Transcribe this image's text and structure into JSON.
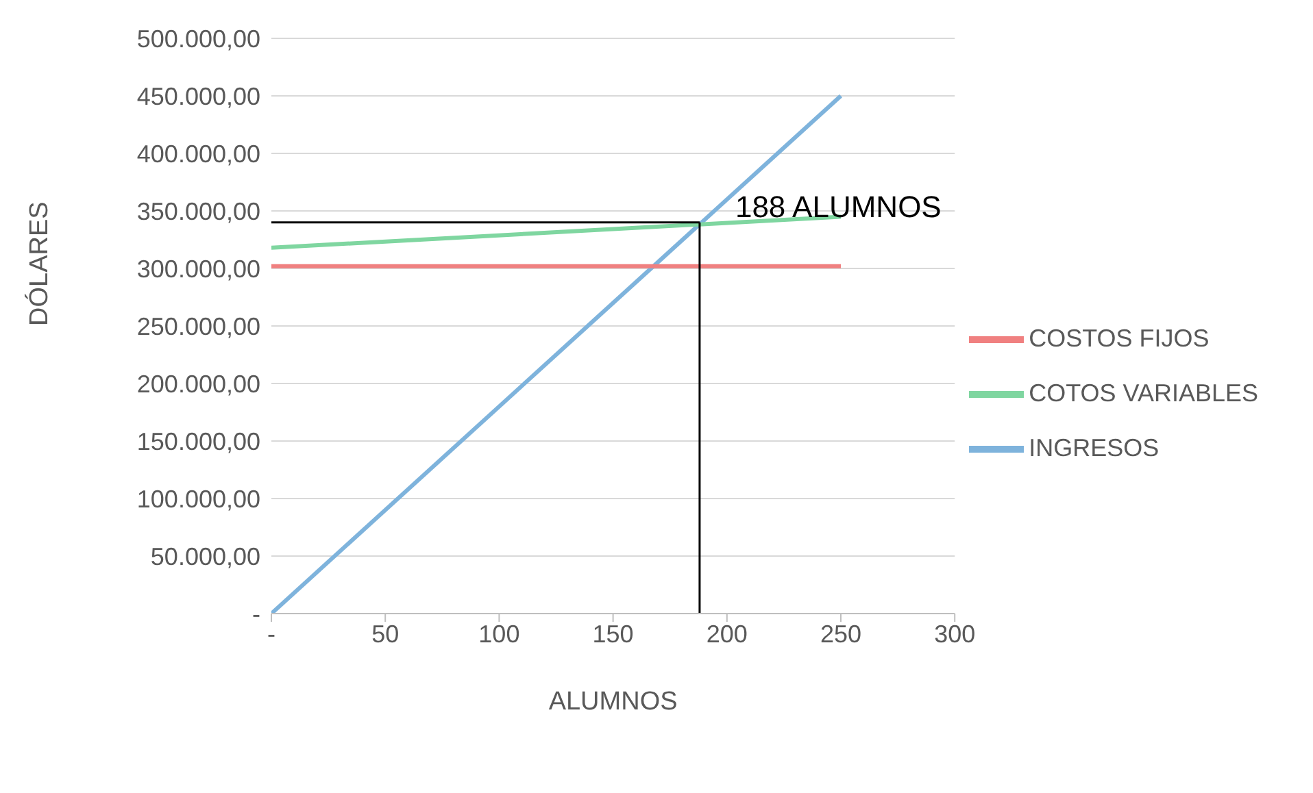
{
  "chart_data": {
    "type": "line",
    "xlabel": "ALUMNOS",
    "ylabel": "DÓLARES",
    "xlim": [
      0,
      300
    ],
    "xticks": [
      {
        "value": 0,
        "label": "-"
      },
      50,
      100,
      150,
      200,
      250,
      300
    ],
    "ylim": [
      0,
      500000
    ],
    "yticks": [
      {
        "value": 0,
        "label": "-"
      },
      {
        "value": 50000,
        "label": "50.000,00"
      },
      {
        "value": 100000,
        "label": "100.000,00"
      },
      {
        "value": 150000,
        "label": "150.000,00"
      },
      {
        "value": 200000,
        "label": "200.000,00"
      },
      {
        "value": 250000,
        "label": "250.000,00"
      },
      {
        "value": 300000,
        "label": "300.000,00"
      },
      {
        "value": 350000,
        "label": "350.000,00"
      },
      {
        "value": 400000,
        "label": "400.000,00"
      },
      {
        "value": 450000,
        "label": "450.000,00"
      },
      {
        "value": 500000,
        "label": "500.000,00"
      }
    ],
    "x": [
      0,
      250
    ],
    "series": [
      {
        "name": "INGRESOS",
        "color": "#7eb3dc",
        "values": [
          0,
          450000
        ]
      },
      {
        "name": "COSTOS FIJOS",
        "color": "#f08080",
        "values": [
          302000,
          302000
        ]
      },
      {
        "name": "COTOS VARIABLES",
        "color": "#7fd6a0",
        "values": [
          318000,
          345000
        ]
      }
    ],
    "ref_lines": [
      {
        "axis": "x",
        "value": 188,
        "color": "#000000"
      },
      {
        "axis": "y",
        "value": 340000,
        "color": "#000000"
      }
    ],
    "annotations": [
      {
        "text": "188 ALUMNOS",
        "x": 188,
        "y": 340000
      }
    ],
    "grid": "y",
    "legend": "right",
    "marker": "none",
    "line_style": "solid"
  }
}
